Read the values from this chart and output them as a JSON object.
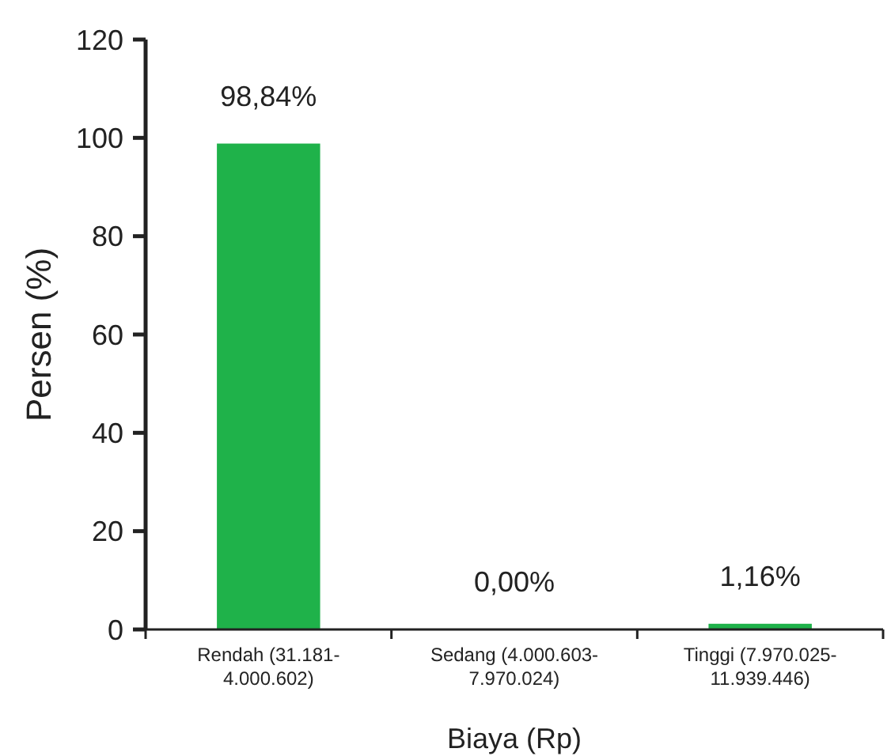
{
  "chart_data": {
    "type": "bar",
    "xlabel": "Biaya (Rp)",
    "ylabel": "Persen (%)",
    "categories": [
      "Rendah (31.181- 4.000.602)",
      "Sedang (4.000.603- 7.970.024)",
      "Tinggi (7.970.025- 11.939.446)"
    ],
    "values": [
      98.84,
      0,
      1.16
    ],
    "value_labels": [
      "98,84%",
      "0,00%",
      "1,16%"
    ],
    "color": "#1fb24a",
    "ylim": [
      0,
      120
    ],
    "yticks": [
      0,
      20,
      40,
      60,
      80,
      100,
      120
    ]
  }
}
